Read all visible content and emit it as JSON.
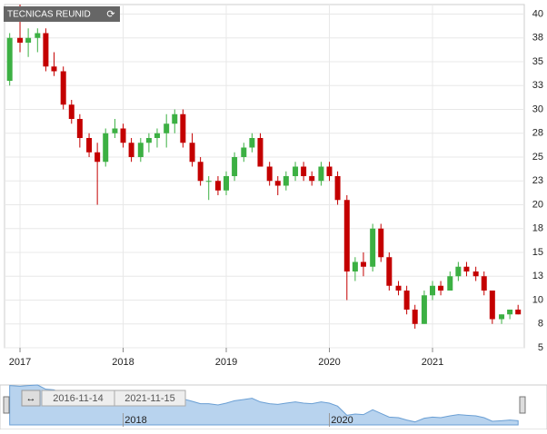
{
  "chart_data": {
    "type": "candlestick",
    "label": "TECNICAS REUNID",
    "x": [
      2016.9,
      2017.0,
      2017.08,
      2017.17,
      2017.25,
      2017.33,
      2017.42,
      2017.5,
      2017.58,
      2017.67,
      2017.75,
      2017.83,
      2017.92,
      2018.0,
      2018.08,
      2018.17,
      2018.25,
      2018.33,
      2018.42,
      2018.5,
      2018.58,
      2018.67,
      2018.75,
      2018.83,
      2018.92,
      2019.0,
      2019.08,
      2019.17,
      2019.25,
      2019.33,
      2019.42,
      2019.5,
      2019.58,
      2019.67,
      2019.75,
      2019.83,
      2019.92,
      2020.0,
      2020.08,
      2020.17,
      2020.25,
      2020.33,
      2020.42,
      2020.5,
      2020.58,
      2020.67,
      2020.75,
      2020.83,
      2020.92,
      2021.0,
      2021.08,
      2021.17,
      2021.25,
      2021.33,
      2021.42,
      2021.5,
      2021.58,
      2021.67,
      2021.75,
      2021.83
    ],
    "open": [
      33,
      37.5,
      37,
      37.5,
      38,
      34.5,
      34,
      30.5,
      29,
      27,
      25.5,
      24.5,
      27.5,
      28,
      26.5,
      25,
      26.5,
      27,
      27.5,
      28.5,
      29.5,
      26.5,
      24.5,
      22.5,
      22.5,
      21.5,
      23,
      25,
      26,
      27,
      24,
      22.5,
      22,
      23,
      24,
      23,
      22.5,
      24,
      23,
      20.5,
      13,
      14,
      13.5,
      17.5,
      14.5,
      11.5,
      11,
      9,
      7.5,
      10.5,
      11.5,
      11,
      12.5,
      13.5,
      13,
      12.5,
      11,
      8,
      8.5,
      9
    ],
    "high": [
      38,
      41,
      38.5,
      38.5,
      38.5,
      36,
      34.5,
      31,
      29.5,
      27.5,
      26.5,
      28,
      29,
      28.5,
      27,
      27,
      27.5,
      28,
      29.5,
      30,
      30,
      27.5,
      25,
      23,
      23,
      23.5,
      25.5,
      26.5,
      27.5,
      27.5,
      24.5,
      23,
      23.5,
      24.5,
      24.5,
      23.5,
      24.5,
      24.5,
      23.5,
      21,
      14.5,
      15,
      18,
      18,
      15,
      12,
      11.5,
      9.5,
      11,
      12,
      12,
      13,
      14,
      14,
      13.5,
      13,
      11,
      8.5,
      9,
      9.5
    ],
    "low": [
      32.5,
      36,
      35.5,
      36,
      34,
      33.5,
      30,
      28.5,
      26,
      25,
      20,
      24,
      27,
      26,
      24.5,
      24.5,
      25.5,
      26,
      26,
      27.5,
      26,
      24,
      22,
      20.5,
      21,
      21,
      22.5,
      24.5,
      25.5,
      24,
      22,
      21,
      21.5,
      22.5,
      22.5,
      22,
      22,
      22.5,
      20,
      10,
      12,
      12.5,
      13,
      14,
      11,
      10.5,
      8.5,
      7,
      7.5,
      10,
      10.5,
      11,
      12,
      12.5,
      12,
      10.5,
      7.5,
      7.5,
      8,
      8.5
    ],
    "close": [
      37.5,
      37,
      37.5,
      38,
      34.5,
      34,
      30.5,
      29,
      27,
      25.5,
      24.5,
      27.5,
      28,
      26.5,
      25,
      26.5,
      27,
      27.5,
      28.5,
      29.5,
      26.5,
      24.5,
      22.5,
      22.5,
      21.5,
      23,
      25,
      26,
      27,
      24,
      22.5,
      22,
      23,
      24,
      23,
      22.5,
      24,
      23,
      20.5,
      13,
      14,
      13.5,
      17.5,
      14.5,
      11.5,
      11,
      9,
      7.5,
      10.5,
      11.5,
      11,
      12.5,
      13.5,
      13,
      12.5,
      11,
      8,
      8.5,
      9,
      8.5
    ],
    "up_color": "#3cb043",
    "down_color": "#c40000",
    "xlim": [
      2016.85,
      2021.89
    ],
    "xticks": [
      2017,
      2018,
      2019,
      2020,
      2021
    ],
    "ylim": [
      5,
      41
    ],
    "yticks": [
      5,
      {
        "value": 7.5,
        "label": "8"
      },
      10,
      {
        "value": 12.5,
        "label": "13"
      },
      15,
      {
        "value": 17.5,
        "label": "18"
      },
      20,
      {
        "value": 22.5,
        "label": "23"
      },
      25,
      {
        "value": 27.5,
        "label": "28"
      },
      30,
      {
        "value": 32.5,
        "label": "33"
      },
      35,
      {
        "value": 37.5,
        "label": "38"
      },
      40
    ],
    "grid": true,
    "navigator": {
      "start": "2016-11-14",
      "end": "2021-11-15",
      "xticks": [
        2018,
        2020
      ]
    }
  }
}
